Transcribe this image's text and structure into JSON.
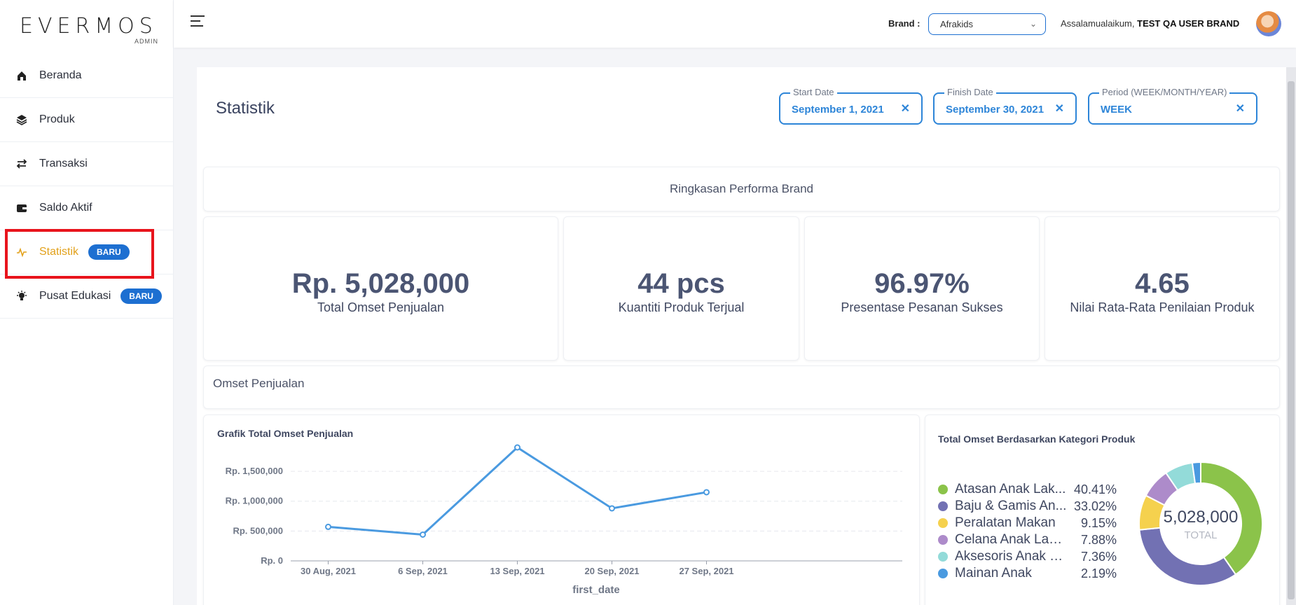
{
  "logo": {
    "word": "EVERMOS",
    "sub": "ADMIN"
  },
  "sidebar": {
    "items": [
      {
        "label": "Beranda",
        "icon": "home-icon"
      },
      {
        "label": "Produk",
        "icon": "layers-icon"
      },
      {
        "label": "Transaksi",
        "icon": "swap-icon"
      },
      {
        "label": "Saldo Aktif",
        "icon": "wallet-icon"
      },
      {
        "label": "Statistik",
        "icon": "pulse-icon",
        "badge": "BARU",
        "active": true
      },
      {
        "label": "Pusat Edukasi",
        "icon": "bulb-icon",
        "badge": "BARU"
      }
    ]
  },
  "topbar": {
    "brand_label": "Brand :",
    "brand_value": "Afrakids",
    "greeting": "Assalamualaikum,",
    "user": "TEST QA USER BRAND"
  },
  "page": {
    "title": "Statistik",
    "filters": {
      "start_label": "Start Date",
      "start_value": "September 1, 2021",
      "finish_label": "Finish Date",
      "finish_value": "September 30, 2021",
      "period_label": "Period (WEEK/MONTH/YEAR)",
      "period_value": "WEEK"
    },
    "summary_title": "Ringkasan Performa Brand",
    "kpis": [
      {
        "value": "Rp. 5,028,000",
        "caption": "Total Omset Penjualan"
      },
      {
        "value": "44 pcs",
        "caption": "Kuantiti Produk Terjual"
      },
      {
        "value": "96.97%",
        "caption": "Presentase Pesanan Sukses"
      },
      {
        "value": "4.65",
        "caption": "Nilai Rata-Rata Penilaian Produk"
      }
    ],
    "omset_title": "Omset Penjualan",
    "line_title": "Grafik Total Omset Penjualan",
    "pie_title": "Total Omset Berdasarkan Kategori Produk",
    "pie_center_value": "5,028,000",
    "pie_center_label": "TOTAL"
  },
  "colors": {
    "accent": "#1d6fd1",
    "active": "#e2a11b",
    "line": "#4a9ae0"
  },
  "chart_data": [
    {
      "type": "line",
      "title": "Grafik Total Omset Penjualan",
      "xlabel": "first_date",
      "ylabel": "",
      "categories": [
        "30 Aug, 2021",
        "6 Sep, 2021",
        "13 Sep, 2021",
        "20 Sep, 2021",
        "27 Sep, 2021"
      ],
      "values": [
        570000,
        440000,
        1900000,
        880000,
        1150000
      ],
      "yticks": [
        {
          "v": 0,
          "label": "Rp. 0"
        },
        {
          "v": 500000,
          "label": "Rp. 500,000"
        },
        {
          "v": 1000000,
          "label": "Rp. 1,000,000"
        },
        {
          "v": 1500000,
          "label": "Rp. 1,500,000"
        }
      ],
      "ylim": [
        0,
        1900000
      ]
    },
    {
      "type": "pie",
      "title": "Total Omset Berdasarkan Kategori Produk",
      "slices": [
        {
          "label": "Atasan Anak Lak...",
          "pct": "40.41%",
          "value": 40.41,
          "color": "#8bc34a"
        },
        {
          "label": "Baju & Gamis An...",
          "pct": "33.02%",
          "value": 33.02,
          "color": "#7271b3"
        },
        {
          "label": "Peralatan Makan",
          "pct": "9.15%",
          "value": 9.15,
          "color": "#f5d14e"
        },
        {
          "label": "Celana Anak Laki-...",
          "pct": "7.88%",
          "value": 7.88,
          "color": "#ad8bca"
        },
        {
          "label": "Aksesoris Anak P...",
          "pct": "7.36%",
          "value": 7.36,
          "color": "#93dbd9"
        },
        {
          "label": "Mainan Anak",
          "pct": "2.19%",
          "value": 2.19,
          "color": "#4a9ae0"
        }
      ]
    }
  ]
}
